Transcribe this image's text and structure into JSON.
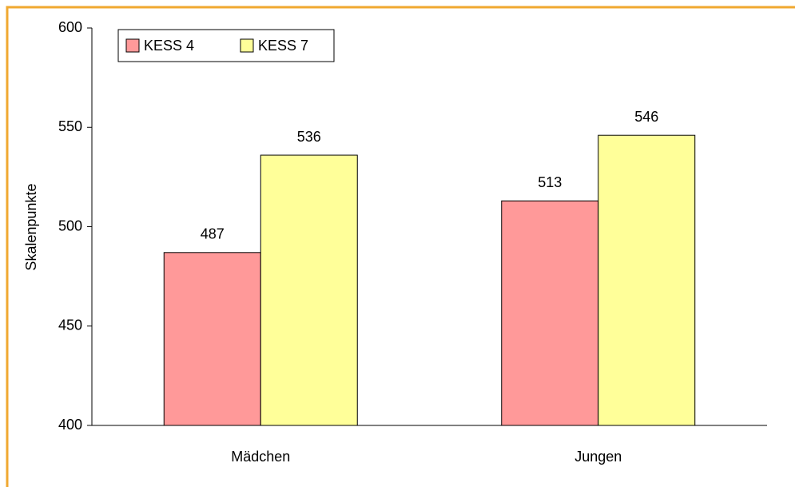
{
  "chart_data": {
    "type": "bar",
    "categories": [
      "Mädchen",
      "Jungen"
    ],
    "series": [
      {
        "name": "KESS 4",
        "color": "#ff9999",
        "values": [
          487,
          513
        ]
      },
      {
        "name": "KESS 7",
        "color": "#ffff99",
        "values": [
          536,
          546
        ]
      }
    ],
    "y_label": "Skalenpunkte",
    "ylim": [
      400,
      600
    ],
    "yticks": [
      400,
      450,
      500,
      550,
      600
    ],
    "legend": "top-left"
  }
}
